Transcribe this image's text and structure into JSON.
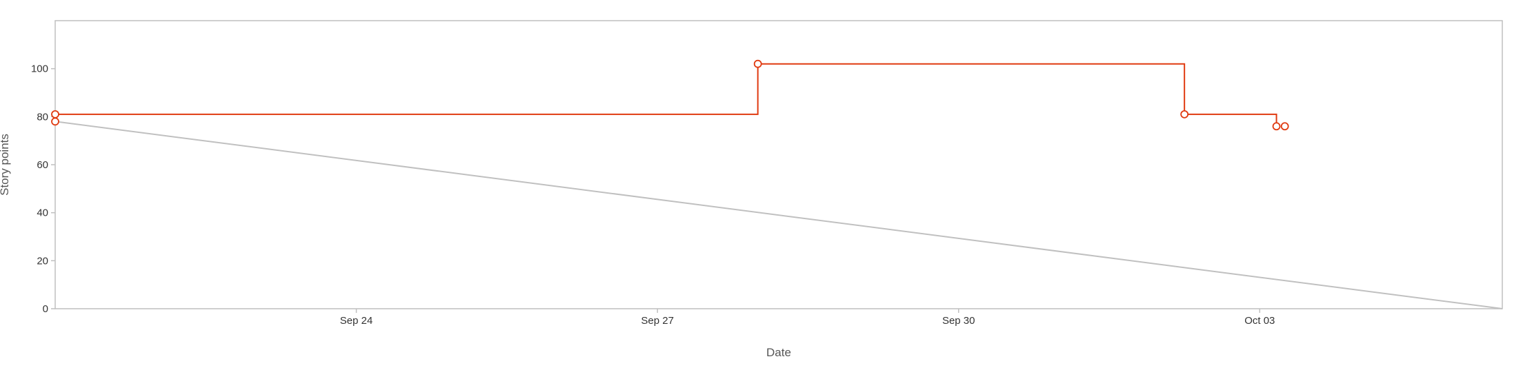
{
  "chart_data": {
    "type": "line",
    "title": "",
    "xlabel": "Date",
    "ylabel": "Story points",
    "ylim": [
      0,
      120
    ],
    "yticks": [
      0,
      20,
      40,
      60,
      80,
      100
    ],
    "xlim": [
      "2024-09-21",
      "2024-10-05T10:00"
    ],
    "xticks": [
      {
        "date": "2024-09-24",
        "label": "Sep 24"
      },
      {
        "date": "2024-09-27",
        "label": "Sep 27"
      },
      {
        "date": "2024-09-30",
        "label": "Sep 30"
      },
      {
        "date": "2024-10-03",
        "label": "Oct 03"
      }
    ],
    "grid": false,
    "colors": {
      "actual": "#e03a10",
      "ideal": "#c0c0c0",
      "axis": "#bfbfbf"
    },
    "series": [
      {
        "kind": "step",
        "points": [
          {
            "x": "2024-09-21T00:00",
            "y": 81
          },
          {
            "x": "2024-09-28T00:00",
            "y": 102
          },
          {
            "x": "2024-10-02T06:00",
            "y": 81
          },
          {
            "x": "2024-10-03T04:00",
            "y": 76
          },
          {
            "x": "2024-10-03T06:00",
            "y": 76
          }
        ],
        "step_end": "2024-10-03T04:00"
      },
      {
        "kind": "line",
        "points": [
          {
            "x": "2024-09-21T00:00",
            "y": 78
          },
          {
            "x": "2024-10-05T10:00",
            "y": 0
          }
        ],
        "markers": [
          0
        ]
      }
    ]
  }
}
